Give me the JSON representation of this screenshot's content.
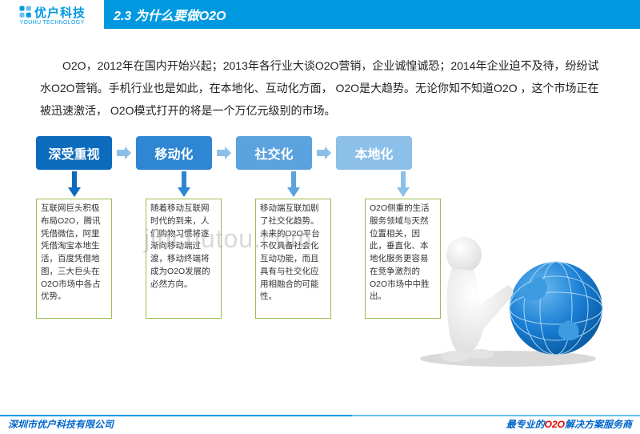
{
  "logo": {
    "cn": "优户科技",
    "en": "YOUHU TECHNOLOGY",
    "color": "#0099e0"
  },
  "title": "2.3 为什么要做O2O",
  "title_bg": "#0099e0",
  "intro": "O2O，2012年在国内开始兴起；2013年各行业大谈O2O营销，企业诚惶诚恐；2014年企业迫不及待，纷纷试水O2O营销。手机行业也是如此，在本地化、互动化方面，  O2O是大趋势。无论你知不知道O2O ，这个市场正在被迅速激活，  O2O模式打开的将是一个万亿元级别的市场。",
  "flow": {
    "boxes": [
      {
        "label": "深受重视",
        "bg": "#0d6bbd"
      },
      {
        "label": "移动化",
        "bg": "#2f86d2"
      },
      {
        "label": "社交化",
        "bg": "#5ba3de"
      },
      {
        "label": "本地化",
        "bg": "#8cc0e8"
      }
    ],
    "arrow_color": "#8cc0e8"
  },
  "columns": [
    {
      "arrow_color": "#0d6bbd",
      "text": "互联网巨头积极布局O2O，腾讯凭借微信，阿里凭借淘宝本地生活，百度凭借地图，三大巨头在O2O市场中各占优势。"
    },
    {
      "arrow_color": "#2f86d2",
      "text": "随着移动互联网时代的到来，人们购物习惯将逐渐向移动端过渡，移动终端将成为O2O发展的必然方向。"
    },
    {
      "arrow_color": "#5ba3de",
      "text": "移动端互联加剧了社交化趋势。未来的O2O平台不仅具备社会化互动功能，而且具有与社交化应用相融合的可能性。"
    },
    {
      "arrow_color": "#8cc0e8",
      "text": "O2O侧重的生活服务领域与天然位置相关，因此，垂直化、本地化服务更容易在竞争激烈的O2O市场中中胜出。"
    }
  ],
  "text_box_border": "#9bbd4e",
  "watermark": "jinchutou.com",
  "footer": {
    "left": "深圳市优户科技有限公司",
    "right_prefix": "最专业的",
    "right_highlight": "O2O",
    "right_suffix": "解决方案服务商"
  }
}
